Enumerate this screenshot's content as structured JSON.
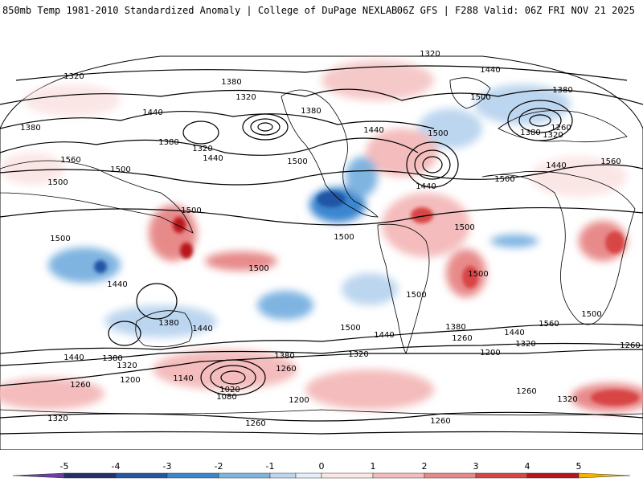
{
  "header": {
    "left": "850mb Temp 1981-2010 Standardized Anomaly | College of DuPage NEXLAB",
    "right": "06Z GFS | F288 Valid: 06Z FRI NOV 21 2025"
  },
  "colorbar": {
    "ticks": [
      "-5",
      "-4",
      "-3",
      "-2",
      "-1",
      "0",
      "1",
      "2",
      "3",
      "4",
      "5"
    ],
    "colors": {
      "n6": "#6a3fa0",
      "n5": "#23306b",
      "n4": "#2454a4",
      "n3": "#3a86cf",
      "n2": "#7fb4e1",
      "n1": "#bcd6ef",
      "n0": "#e4eef9",
      "p0": "#fbe6e6",
      "p1": "#f4bcbc",
      "p2": "#e88a8a",
      "p3": "#d84545",
      "p4": "#b8141c",
      "p5": "#7a0a10",
      "p6": "#f2b400"
    }
  },
  "contour_labels": [
    "1320",
    "1440",
    "1320",
    "1380",
    "1320",
    "1380",
    "1440",
    "1500",
    "1380",
    "1500",
    "1380",
    "1440",
    "1380",
    "1320",
    "1440",
    "1500",
    "1440",
    "1500",
    "1380",
    "1260",
    "1320",
    "1440",
    "1500",
    "1560",
    "1560",
    "1500",
    "1500",
    "1500",
    "1500",
    "1500",
    "1500",
    "1500",
    "1500",
    "1440",
    "1380",
    "1440",
    "1500",
    "1440",
    "1380",
    "1260",
    "1440",
    "1320",
    "1200",
    "1260",
    "1440",
    "1380",
    "1320",
    "1260",
    "1140",
    "1020",
    "1080",
    "1200",
    "1200",
    "1260",
    "1260",
    "1320",
    "1320",
    "1260",
    "1560",
    "1500",
    "1320",
    "1380",
    "1260"
  ]
}
